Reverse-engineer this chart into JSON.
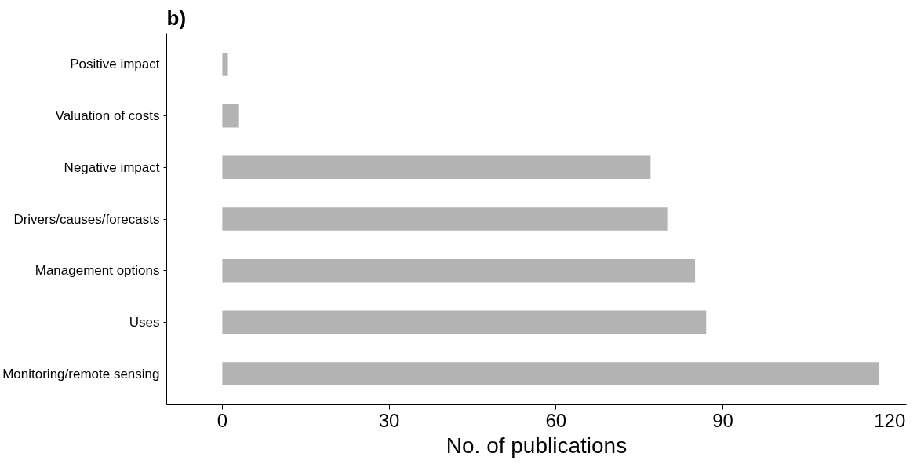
{
  "chart_data": {
    "type": "bar",
    "orientation": "horizontal",
    "title": "b)",
    "xlabel": "No. of publications",
    "categories": [
      "Positive impact",
      "Valuation of costs",
      "Negative impact",
      "Drivers/causes/forecasts",
      "Management options",
      "Uses",
      "Monitoring/remote sensing"
    ],
    "values": [
      1,
      3,
      77,
      80,
      85,
      87,
      118
    ],
    "color": "#b3b3b3",
    "xlim": [
      -10,
      123
    ],
    "xticks": [
      0,
      30,
      60,
      90,
      120
    ],
    "grid": false
  }
}
